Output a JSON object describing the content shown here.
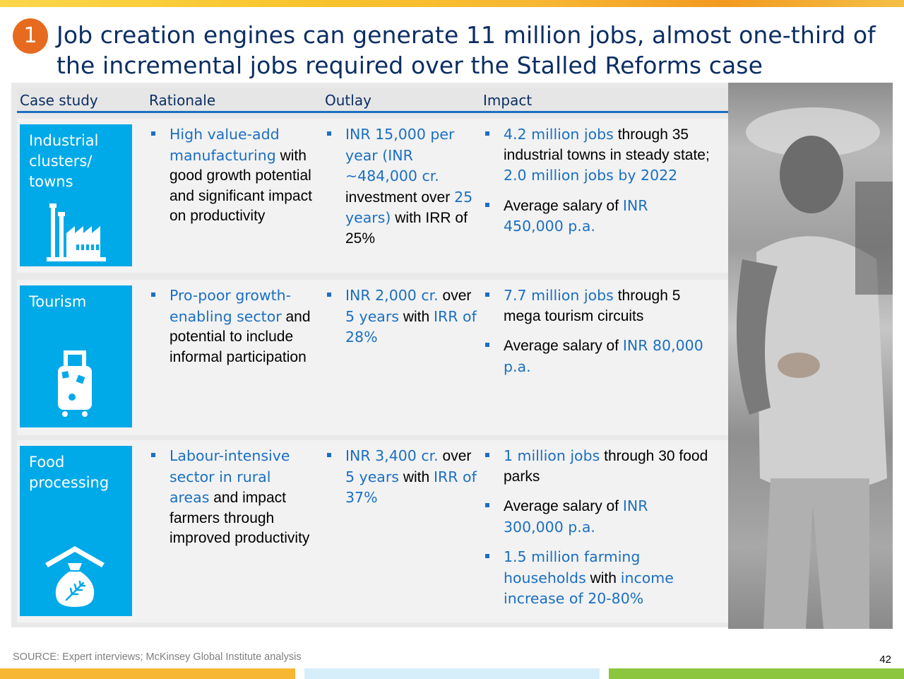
{
  "slide": {
    "badge_number": "1",
    "title": "Job creation engines can generate 11 million jobs, almost one-third of the incremental jobs required over the Stalled Reforms case"
  },
  "table": {
    "headers": [
      "Case study",
      "Rationale",
      "Outlay",
      "Impact"
    ],
    "rows": [
      {
        "label": "Industrial\nclusters/\ntowns",
        "icon": "factory-icon",
        "rationale": [
          [
            {
              "t": "High value-add manufacturing",
              "hl": true
            },
            {
              "t": " with good growth potential and significant impact on productivity",
              "hl": false
            }
          ]
        ],
        "outlay": [
          [
            {
              "t": "INR 15,000 per year (INR ~484,000 cr.",
              "hl": true
            },
            {
              "t": " investment over ",
              "hl": false
            },
            {
              "t": "25 years)",
              "hl": true
            },
            {
              "t": " with IRR of 25%",
              "hl": false
            }
          ]
        ],
        "impact": [
          [
            {
              "t": "4.2 million jobs",
              "hl": true
            },
            {
              "t": " through 35 industrial towns in steady state; ",
              "hl": false
            },
            {
              "t": "2.0 million jobs by 2022",
              "hl": true
            }
          ],
          [
            {
              "t": "Average salary of ",
              "hl": false
            },
            {
              "t": "INR 450,000 p.a.",
              "hl": true
            }
          ]
        ]
      },
      {
        "label": "Tourism",
        "icon": "luggage-icon",
        "rationale": [
          [
            {
              "t": "Pro-poor growth-enabling sector",
              "hl": true
            },
            {
              "t": " and potential to include informal participation",
              "hl": false
            }
          ]
        ],
        "outlay": [
          [
            {
              "t": "INR 2,000 cr.",
              "hl": true
            },
            {
              "t": " over ",
              "hl": false
            },
            {
              "t": "5 years",
              "hl": true
            },
            {
              "t": " with ",
              "hl": false
            },
            {
              "t": "IRR of 28%",
              "hl": true
            }
          ]
        ],
        "impact": [
          [
            {
              "t": "7.7 million jobs",
              "hl": true
            },
            {
              "t": " through 5 mega tourism circuits",
              "hl": false
            }
          ],
          [
            {
              "t": "Average salary of ",
              "hl": false
            },
            {
              "t": "INR 80,000 p.a.",
              "hl": true
            }
          ]
        ]
      },
      {
        "label": "Food\nprocessing",
        "icon": "grain-sack-icon",
        "rationale": [
          [
            {
              "t": "Labour-intensive sector in rural areas",
              "hl": true
            },
            {
              "t": " and impact farmers through improved productivity",
              "hl": false
            }
          ]
        ],
        "outlay": [
          [
            {
              "t": "INR 3,400 cr.",
              "hl": true
            },
            {
              "t": " over ",
              "hl": false
            },
            {
              "t": "5 years",
              "hl": true
            },
            {
              "t": " with ",
              "hl": false
            },
            {
              "t": "IRR of 37%",
              "hl": true
            }
          ]
        ],
        "impact": [
          [
            {
              "t": "1 million jobs",
              "hl": true
            },
            {
              "t": " through 30 food parks",
              "hl": false
            }
          ],
          [
            {
              "t": "Average salary of ",
              "hl": false
            },
            {
              "t": "INR 300,000 p.a.",
              "hl": true
            }
          ],
          [
            {
              "t": "1.5 million farming households",
              "hl": true
            },
            {
              "t": " with ",
              "hl": false
            },
            {
              "t": "income increase of 20-80%",
              "hl": true
            }
          ]
        ]
      }
    ]
  },
  "footer": {
    "source": "SOURCE: Expert interviews; McKinsey Global Institute analysis",
    "page_number": "42"
  },
  "colors": {
    "title": "#0b2e63",
    "highlight": "#1b6fc2",
    "label_box": "#00a9e8",
    "badge": "#e66b1f",
    "footer_bars": [
      "#f7b733",
      "#d6eefa",
      "#8cc63f"
    ]
  }
}
